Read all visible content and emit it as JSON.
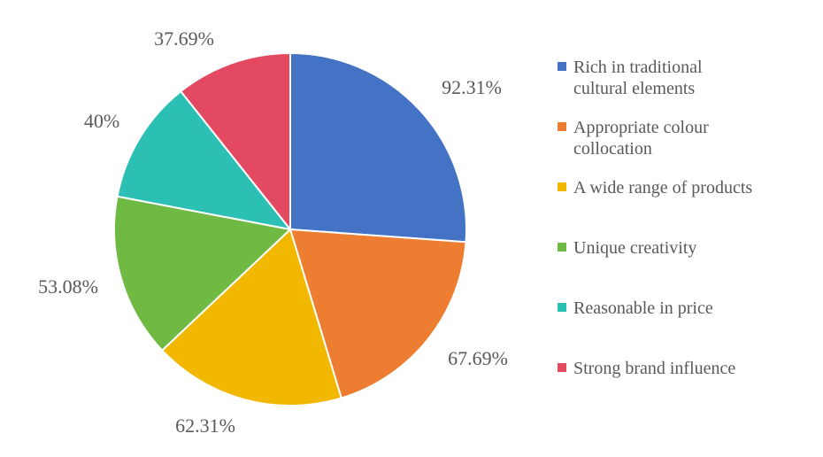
{
  "chart_data": {
    "type": "pie",
    "categories": [
      "Rich in traditional cultural elements",
      "Appropriate colour collocation",
      "A wide range of products",
      "Unique creativity",
      "Reasonable in price",
      "Strong brand influence"
    ],
    "legend_lines": [
      [
        "Rich in traditional",
        "cultural elements"
      ],
      [
        "Appropriate colour",
        "collocation"
      ],
      [
        "A wide range of products"
      ],
      [
        "Unique creativity"
      ],
      [
        "Reasonable in price"
      ],
      [
        "Strong brand influence"
      ]
    ],
    "values": [
      92.31,
      67.69,
      62.31,
      53.08,
      40,
      37.69
    ],
    "data_labels": [
      "92.31%",
      "67.69%",
      "62.31%",
      "53.08%",
      "40%",
      "37.69%"
    ],
    "colors": [
      "#4472C4",
      "#ED7D31",
      "#F2B800",
      "#70B943",
      "#2CC0B4",
      "#E34A62"
    ],
    "title": "",
    "legend_position": "right",
    "start_angle": "12 o'clock",
    "direction": "clockwise"
  }
}
